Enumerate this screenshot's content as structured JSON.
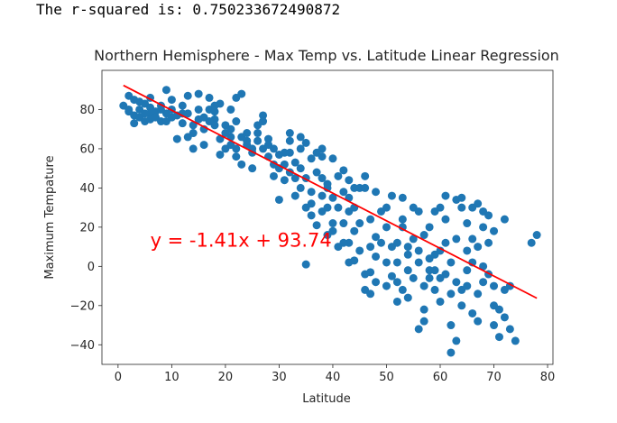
{
  "output": {
    "rsquared_text": "The r-squared is: 0.750233672490872"
  },
  "chart_data": {
    "type": "scatter",
    "title": "Northern Hemisphere - Max Temp vs. Latitude Linear Regression",
    "xlabel": "Latitude",
    "ylabel": "Maximum Tempature",
    "xlim": [
      -3,
      81
    ],
    "ylim": [
      -50,
      100
    ],
    "xticks": [
      0,
      10,
      20,
      30,
      40,
      50,
      60,
      70,
      80
    ],
    "yticks": [
      -40,
      -20,
      0,
      20,
      40,
      60,
      80
    ],
    "grid": false,
    "point_color": "#1f77b4",
    "line_color": "#ff0000",
    "regression": {
      "slope": -1.41,
      "intercept": 93.74,
      "x_range": [
        1,
        78
      ],
      "equation_label": "y = -1.41x + 93.74",
      "label_x": 6,
      "label_y": 10
    },
    "points": [
      [
        1,
        82
      ],
      [
        2,
        87
      ],
      [
        2,
        79
      ],
      [
        3,
        85
      ],
      [
        3,
        77
      ],
      [
        3,
        73
      ],
      [
        4,
        80
      ],
      [
        4,
        76
      ],
      [
        5,
        83
      ],
      [
        5,
        74
      ],
      [
        6,
        81
      ],
      [
        6,
        78
      ],
      [
        6,
        75
      ],
      [
        7,
        79
      ],
      [
        7,
        76
      ],
      [
        8,
        82
      ],
      [
        8,
        74
      ],
      [
        9,
        90
      ],
      [
        9,
        78
      ],
      [
        10,
        80
      ],
      [
        10,
        85
      ],
      [
        11,
        77
      ],
      [
        11,
        65
      ],
      [
        12,
        82
      ],
      [
        12,
        73
      ],
      [
        13,
        78
      ],
      [
        13,
        87
      ],
      [
        14,
        68
      ],
      [
        14,
        60
      ],
      [
        15,
        75
      ],
      [
        15,
        88
      ],
      [
        15,
        80
      ],
      [
        16,
        62
      ],
      [
        16,
        70
      ],
      [
        17,
        80
      ],
      [
        17,
        86
      ],
      [
        18,
        75
      ],
      [
        18,
        79
      ],
      [
        18,
        72
      ],
      [
        19,
        83
      ],
      [
        19,
        57
      ],
      [
        19,
        65
      ],
      [
        20,
        60
      ],
      [
        20,
        72
      ],
      [
        21,
        70
      ],
      [
        21,
        66
      ],
      [
        21,
        80
      ],
      [
        22,
        60
      ],
      [
        22,
        74
      ],
      [
        22,
        86
      ],
      [
        23,
        66
      ],
      [
        23,
        88
      ],
      [
        23,
        52
      ],
      [
        24,
        62
      ],
      [
        24,
        68
      ],
      [
        25,
        50
      ],
      [
        25,
        58
      ],
      [
        26,
        72
      ],
      [
        26,
        68
      ],
      [
        27,
        60
      ],
      [
        27,
        77
      ],
      [
        27,
        74
      ],
      [
        28,
        56
      ],
      [
        28,
        65
      ],
      [
        29,
        52
      ],
      [
        29,
        60
      ],
      [
        30,
        57
      ],
      [
        30,
        50
      ],
      [
        31,
        44
      ],
      [
        31,
        52
      ],
      [
        32,
        48
      ],
      [
        32,
        68
      ],
      [
        32,
        58
      ],
      [
        33,
        53
      ],
      [
        33,
        45
      ],
      [
        33,
        36
      ],
      [
        34,
        60
      ],
      [
        34,
        40
      ],
      [
        34,
        50
      ],
      [
        35,
        1
      ],
      [
        35,
        63
      ],
      [
        35,
        45
      ],
      [
        36,
        38
      ],
      [
        36,
        55
      ],
      [
        36,
        26
      ],
      [
        37,
        58
      ],
      [
        37,
        48
      ],
      [
        37,
        21
      ],
      [
        38,
        60
      ],
      [
        38,
        45
      ],
      [
        38,
        28
      ],
      [
        38,
        56
      ],
      [
        39,
        42
      ],
      [
        39,
        30
      ],
      [
        39,
        16
      ],
      [
        40,
        55
      ],
      [
        40,
        35
      ],
      [
        40,
        22
      ],
      [
        41,
        46
      ],
      [
        41,
        30
      ],
      [
        41,
        10
      ],
      [
        42,
        38
      ],
      [
        42,
        22
      ],
      [
        42,
        49
      ],
      [
        43,
        2
      ],
      [
        43,
        12
      ],
      [
        43,
        28
      ],
      [
        43,
        35
      ],
      [
        44,
        30
      ],
      [
        44,
        18
      ],
      [
        44,
        3
      ],
      [
        45,
        40
      ],
      [
        45,
        22
      ],
      [
        45,
        8
      ],
      [
        46,
        46
      ],
      [
        46,
        40
      ],
      [
        46,
        -12
      ],
      [
        47,
        24
      ],
      [
        47,
        -14
      ],
      [
        47,
        -3
      ],
      [
        48,
        15
      ],
      [
        48,
        5
      ],
      [
        48,
        -8
      ],
      [
        49,
        28
      ],
      [
        49,
        12
      ],
      [
        50,
        20
      ],
      [
        50,
        2
      ],
      [
        50,
        30
      ],
      [
        51,
        10
      ],
      [
        51,
        -5
      ],
      [
        51,
        36
      ],
      [
        52,
        12
      ],
      [
        52,
        -18
      ],
      [
        52,
        2
      ],
      [
        53,
        20
      ],
      [
        53,
        -12
      ],
      [
        53,
        35
      ],
      [
        54,
        6
      ],
      [
        54,
        -2
      ],
      [
        54,
        -16
      ],
      [
        55,
        14
      ],
      [
        55,
        -6
      ],
      [
        55,
        30
      ],
      [
        56,
        28
      ],
      [
        56,
        -32
      ],
      [
        56,
        2
      ],
      [
        57,
        -10
      ],
      [
        57,
        -28
      ],
      [
        57,
        16
      ],
      [
        58,
        20
      ],
      [
        58,
        4
      ],
      [
        58,
        -6
      ],
      [
        59,
        -2
      ],
      [
        59,
        -12
      ],
      [
        59,
        28
      ],
      [
        60,
        30
      ],
      [
        60,
        8
      ],
      [
        60,
        -18
      ],
      [
        61,
        36
      ],
      [
        61,
        12
      ],
      [
        61,
        -4
      ],
      [
        62,
        -44
      ],
      [
        62,
        -30
      ],
      [
        62,
        2
      ],
      [
        63,
        34
      ],
      [
        63,
        14
      ],
      [
        63,
        -8
      ],
      [
        63,
        -38
      ],
      [
        64,
        35
      ],
      [
        64,
        -12
      ],
      [
        64,
        -20
      ],
      [
        65,
        22
      ],
      [
        65,
        8
      ],
      [
        65,
        -2
      ],
      [
        66,
        30
      ],
      [
        66,
        14
      ],
      [
        66,
        -24
      ],
      [
        67,
        10
      ],
      [
        67,
        -14
      ],
      [
        67,
        -28
      ],
      [
        68,
        20
      ],
      [
        68,
        -8
      ],
      [
        68,
        28
      ],
      [
        69,
        12
      ],
      [
        69,
        -4
      ],
      [
        69,
        26
      ],
      [
        70,
        -30
      ],
      [
        70,
        -20
      ],
      [
        70,
        -10
      ],
      [
        71,
        -36
      ],
      [
        71,
        -22
      ],
      [
        72,
        -26
      ],
      [
        72,
        -12
      ],
      [
        73,
        -32
      ],
      [
        74,
        -38
      ],
      [
        77,
        12
      ],
      [
        78,
        16
      ],
      [
        73,
        -10
      ],
      [
        68,
        0
      ],
      [
        62,
        -14
      ],
      [
        59,
        6
      ],
      [
        56,
        8
      ],
      [
        53,
        24
      ],
      [
        48,
        38
      ],
      [
        44,
        40
      ],
      [
        40,
        18
      ],
      [
        36,
        32
      ],
      [
        31,
        58
      ],
      [
        28,
        62
      ],
      [
        24,
        64
      ],
      [
        20,
        68
      ],
      [
        17,
        74
      ],
      [
        12,
        78
      ],
      [
        8,
        80
      ],
      [
        4,
        84
      ],
      [
        60,
        -6
      ],
      [
        65,
        -10
      ],
      [
        66,
        2
      ],
      [
        64,
        30
      ],
      [
        46,
        -4
      ],
      [
        50,
        -10
      ],
      [
        54,
        10
      ],
      [
        58,
        -2
      ],
      [
        42,
        12
      ],
      [
        38,
        36
      ],
      [
        34,
        66
      ],
      [
        29,
        46
      ],
      [
        26,
        64
      ],
      [
        22,
        56
      ],
      [
        18,
        82
      ],
      [
        14,
        72
      ],
      [
        10,
        76
      ],
      [
        6,
        86
      ],
      [
        70,
        18
      ],
      [
        72,
        24
      ],
      [
        67,
        32
      ],
      [
        61,
        24
      ],
      [
        57,
        -22
      ],
      [
        52,
        -8
      ],
      [
        47,
        10
      ],
      [
        43,
        44
      ],
      [
        39,
        40
      ],
      [
        35,
        30
      ],
      [
        32,
        64
      ],
      [
        30,
        34
      ],
      [
        25,
        60
      ],
      [
        21,
        62
      ],
      [
        16,
        76
      ],
      [
        13,
        66
      ],
      [
        9,
        74
      ],
      [
        5,
        78
      ],
      [
        2,
        80
      ]
    ]
  }
}
